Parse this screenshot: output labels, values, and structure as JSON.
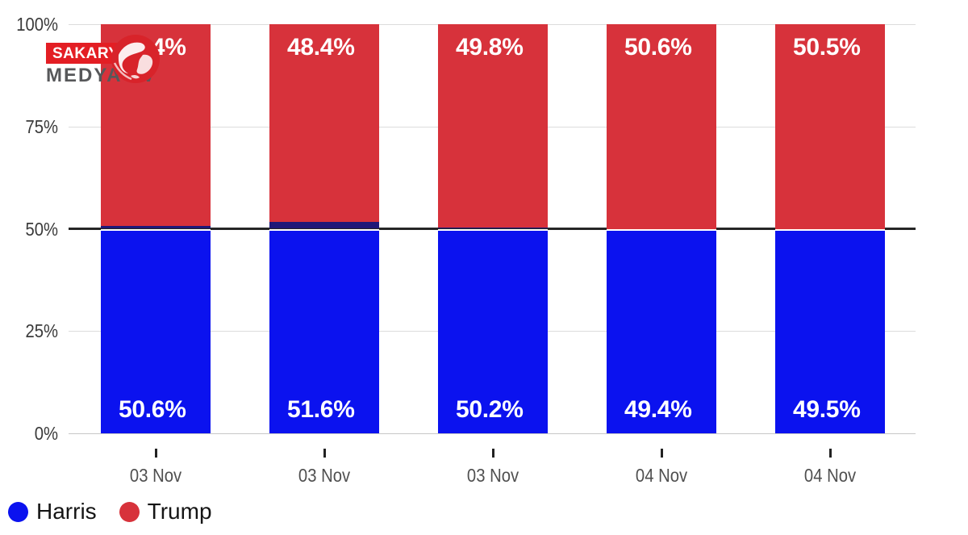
{
  "brand": {
    "name_top": "SAKARYA",
    "name_bottom": "MEDYA TV",
    "box_color": "#e31e24",
    "subname_color": "#57585a",
    "globe_color": "#d8232a"
  },
  "chart_data": {
    "type": "bar",
    "stacked": true,
    "title": "",
    "xlabel": "",
    "ylabel": "",
    "categories": [
      "03 Nov",
      "03 Nov",
      "03 Nov",
      "04 Nov",
      "04 Nov"
    ],
    "series": [
      {
        "name": "Harris",
        "color": "#0b12ef",
        "values": [
          50.6,
          51.6,
          50.2,
          49.4,
          49.5
        ]
      },
      {
        "name": "Trump",
        "color": "#d7323b",
        "values": [
          49.4,
          48.4,
          49.8,
          50.6,
          50.5
        ]
      }
    ],
    "bar_labels": {
      "harris": [
        "50.6%",
        "51.6%",
        "50.2%",
        "49.4%",
        "49.5%"
      ],
      "trump": [
        "49.4%",
        "48.4%",
        "49.8%",
        "50.6%",
        "50.5%"
      ]
    },
    "y_ticks": [
      {
        "label": "100%",
        "value": 100
      },
      {
        "label": "75%",
        "value": 75
      },
      {
        "label": "50%",
        "value": 50
      },
      {
        "label": "25%",
        "value": 25
      },
      {
        "label": "0%",
        "value": 0
      }
    ],
    "ylim": [
      0,
      100
    ],
    "reference_line": 50,
    "grid": true,
    "legend_position": "bottom-left",
    "legend": [
      "Harris",
      "Trump"
    ]
  }
}
